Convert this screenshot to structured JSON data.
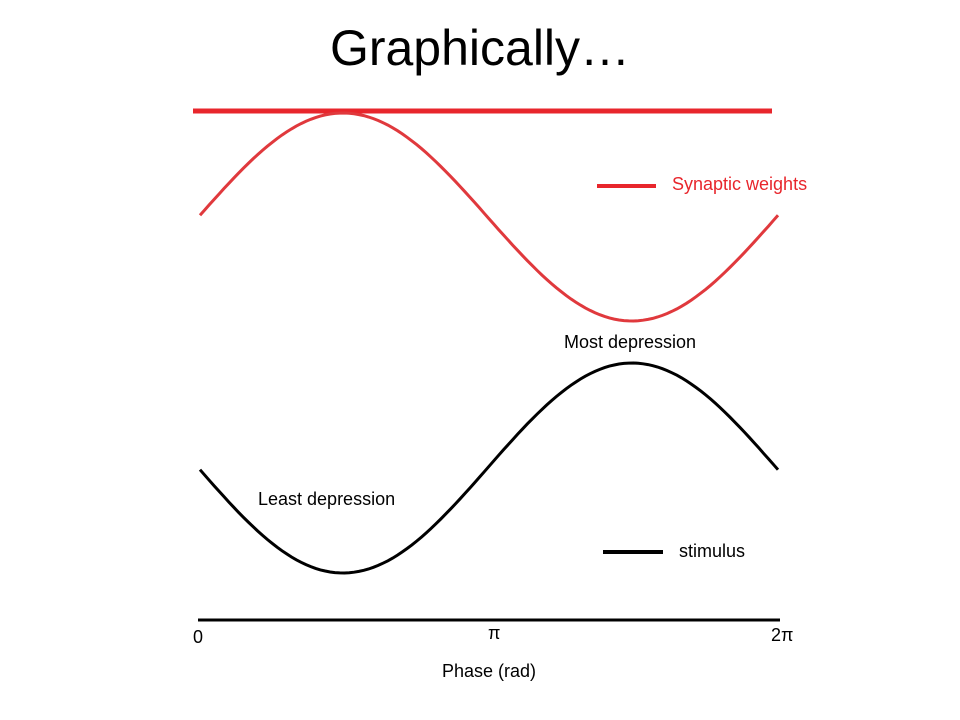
{
  "title": "Graphically…",
  "labels": {
    "synaptic_weights": "Synaptic weights",
    "most_depression": "Most depression",
    "least_depression": "Least depression",
    "stimulus": "stimulus",
    "tick_0": "0",
    "tick_pi": "π",
    "tick_2pi": "2π",
    "xlabel": "Phase (rad)"
  },
  "colors": {
    "weights": "#e8262c",
    "weights_curve": "#e0393d",
    "stimulus": "#000000",
    "axis": "#000000"
  }
}
